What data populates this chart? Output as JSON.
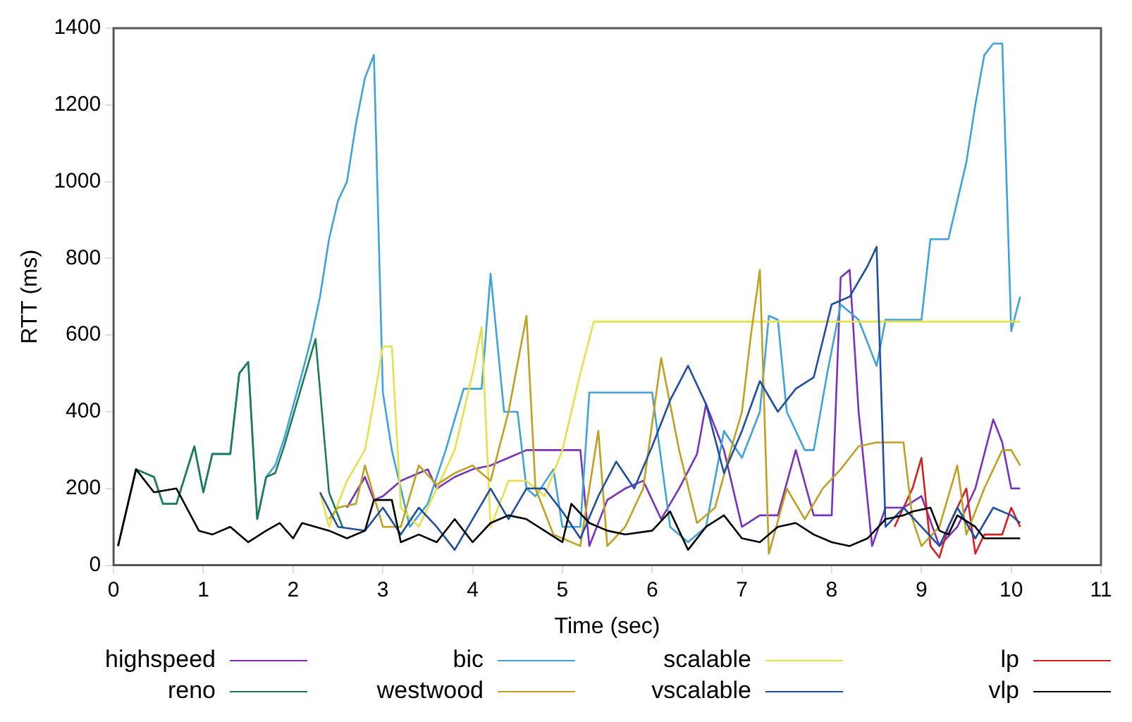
{
  "chart_data": {
    "type": "line",
    "xlabel": "Time (sec)",
    "ylabel": "RTT (ms)",
    "xlim": [
      0,
      11
    ],
    "xticks": [
      0,
      1,
      2,
      3,
      4,
      5,
      6,
      7,
      8,
      9,
      10,
      11
    ],
    "ylim": [
      0,
      1400
    ],
    "yticks": [
      0,
      200,
      400,
      600,
      800,
      1000,
      1200,
      1400
    ],
    "grid": false,
    "legend": "bottom",
    "marker": "none",
    "line_style": "solid",
    "series": [
      {
        "name": "highspeed",
        "color": "#7b2fbf",
        "x": [
          2.6,
          2.8,
          2.9,
          3.0,
          3.2,
          3.4,
          3.5,
          3.6,
          3.8,
          4.0,
          4.2,
          4.4,
          4.6,
          5.2,
          5.3,
          5.5,
          5.7,
          5.9,
          6.1,
          6.3,
          6.5,
          6.6,
          6.8,
          7.0,
          7.2,
          7.4,
          7.6,
          7.8,
          8.0,
          8.1,
          8.2,
          8.3,
          8.45,
          8.6,
          8.8,
          9.0,
          9.2,
          9.4,
          9.6,
          9.8,
          9.9,
          10.0,
          10.1
        ],
        "values": [
          150,
          230,
          170,
          180,
          220,
          240,
          250,
          200,
          230,
          250,
          260,
          280,
          300,
          300,
          50,
          170,
          200,
          220,
          120,
          200,
          290,
          420,
          300,
          100,
          130,
          130,
          300,
          130,
          130,
          750,
          770,
          400,
          50,
          150,
          150,
          180,
          50,
          100,
          200,
          380,
          320,
          200,
          200
        ]
      },
      {
        "name": "bic",
        "color": "#3fa2d8",
        "x": [
          0.05,
          0.25,
          0.45,
          0.55,
          0.7,
          0.9,
          1.0,
          1.1,
          1.3,
          1.4,
          1.5,
          1.6,
          1.7,
          1.8,
          1.9,
          2.1,
          2.2,
          2.3,
          2.4,
          2.5,
          2.6,
          2.7,
          2.8,
          2.9,
          3.0,
          3.1,
          3.3,
          3.5,
          3.7,
          3.9,
          4.1,
          4.2,
          4.35,
          4.5,
          4.6,
          4.7,
          4.9,
          5.0,
          5.2,
          5.3,
          5.6,
          6.0,
          6.2,
          6.4,
          6.6,
          6.8,
          7.0,
          7.2,
          7.3,
          7.4,
          7.5,
          7.7,
          7.8,
          7.95,
          8.1,
          8.3,
          8.5,
          8.6,
          9.0,
          9.1,
          9.3,
          9.5,
          9.6,
          9.7,
          9.8,
          9.9,
          10.0,
          10.1
        ],
        "values": [
          50,
          250,
          230,
          160,
          160,
          310,
          190,
          290,
          290,
          500,
          530,
          120,
          230,
          260,
          330,
          500,
          590,
          700,
          850,
          950,
          1000,
          1150,
          1270,
          1330,
          450,
          300,
          100,
          160,
          300,
          460,
          460,
          760,
          400,
          400,
          200,
          180,
          250,
          100,
          100,
          450,
          450,
          450,
          100,
          60,
          100,
          350,
          280,
          400,
          650,
          640,
          400,
          300,
          300,
          500,
          680,
          640,
          520,
          640,
          640,
          850,
          850,
          1050,
          1200,
          1330,
          1360,
          1360,
          610,
          700
        ]
      },
      {
        "name": "scalable",
        "color": "#e6e04a",
        "x": [
          2.3,
          2.4,
          2.6,
          2.8,
          2.9,
          3.0,
          3.1,
          3.2,
          3.4,
          3.6,
          3.8,
          4.0,
          4.1,
          4.2,
          4.4,
          4.6,
          4.8,
          5.0,
          5.2,
          5.35,
          10.1
        ],
        "values": [
          190,
          100,
          220,
          300,
          430,
          570,
          570,
          150,
          100,
          200,
          300,
          500,
          620,
          100,
          220,
          220,
          180,
          300,
          500,
          635,
          635
        ]
      },
      {
        "name": "lp",
        "color": "#d62020",
        "x": [
          8.7,
          8.9,
          9.0,
          9.1,
          9.2,
          9.3,
          9.5,
          9.6,
          9.7,
          9.9,
          10.0,
          10.1
        ],
        "values": [
          100,
          200,
          280,
          50,
          20,
          100,
          200,
          30,
          80,
          80,
          150,
          100
        ]
      },
      {
        "name": "reno",
        "color": "#1f7a5a",
        "x": [
          0.05,
          0.25,
          0.45,
          0.55,
          0.7,
          0.9,
          1.0,
          1.1,
          1.3,
          1.4,
          1.5,
          1.6,
          1.7,
          1.8,
          1.9,
          2.1,
          2.25,
          2.4,
          2.55
        ],
        "values": [
          50,
          250,
          230,
          160,
          160,
          310,
          190,
          290,
          290,
          500,
          530,
          120,
          230,
          240,
          310,
          470,
          590,
          190,
          100
        ]
      },
      {
        "name": "westwood",
        "color": "#c0a020",
        "x": [
          2.4,
          2.5,
          2.7,
          2.8,
          3.0,
          3.2,
          3.4,
          3.6,
          3.8,
          4.0,
          4.2,
          4.4,
          4.6,
          4.7,
          4.9,
          5.2,
          5.4,
          5.5,
          5.7,
          5.9,
          6.1,
          6.3,
          6.5,
          6.7,
          6.9,
          7.0,
          7.1,
          7.2,
          7.3,
          7.5,
          7.7,
          7.9,
          8.1,
          8.3,
          8.5,
          8.8,
          8.9,
          9.0,
          9.2,
          9.4,
          9.5,
          9.7,
          9.9,
          10.0,
          10.1
        ],
        "values": [
          120,
          150,
          160,
          260,
          100,
          100,
          260,
          210,
          240,
          260,
          220,
          400,
          650,
          200,
          80,
          50,
          350,
          50,
          100,
          200,
          540,
          300,
          110,
          150,
          320,
          400,
          600,
          770,
          30,
          200,
          120,
          200,
          250,
          310,
          320,
          320,
          120,
          50,
          100,
          260,
          80,
          200,
          300,
          300,
          260
        ]
      },
      {
        "name": "vscalable",
        "color": "#1f4fa0",
        "x": [
          2.3,
          2.5,
          2.8,
          3.0,
          3.2,
          3.4,
          3.6,
          3.8,
          4.0,
          4.2,
          4.4,
          4.6,
          4.8,
          5.0,
          5.2,
          5.4,
          5.6,
          5.8,
          6.0,
          6.2,
          6.4,
          6.6,
          6.8,
          7.0,
          7.2,
          7.4,
          7.6,
          7.8,
          8.0,
          8.2,
          8.4,
          8.5,
          8.6,
          8.8,
          9.0,
          9.2,
          9.4,
          9.6,
          9.8,
          10.0,
          10.1
        ],
        "values": [
          190,
          100,
          90,
          150,
          80,
          150,
          100,
          40,
          120,
          200,
          120,
          200,
          200,
          140,
          70,
          180,
          270,
          200,
          310,
          430,
          520,
          420,
          240,
          350,
          480,
          400,
          460,
          490,
          680,
          700,
          780,
          830,
          100,
          150,
          100,
          50,
          150,
          70,
          150,
          130,
          110
        ]
      },
      {
        "name": "vlp",
        "color": "#000000",
        "x": [
          0.05,
          0.25,
          0.45,
          0.7,
          0.95,
          1.1,
          1.3,
          1.5,
          1.7,
          1.85,
          2.0,
          2.1,
          2.4,
          2.6,
          2.8,
          2.9,
          3.1,
          3.2,
          3.4,
          3.6,
          3.8,
          4.0,
          4.2,
          4.4,
          4.6,
          4.8,
          5.0,
          5.1,
          5.3,
          5.5,
          5.7,
          6.0,
          6.2,
          6.4,
          6.6,
          6.8,
          7.0,
          7.2,
          7.4,
          7.6,
          7.8,
          8.0,
          8.2,
          8.4,
          8.6,
          8.8,
          8.9,
          9.1,
          9.2,
          9.3,
          9.4,
          9.6,
          9.7,
          10.1
        ],
        "values": [
          50,
          250,
          190,
          200,
          90,
          80,
          100,
          60,
          90,
          110,
          70,
          110,
          90,
          70,
          90,
          170,
          170,
          60,
          80,
          60,
          120,
          60,
          110,
          130,
          120,
          90,
          60,
          160,
          110,
          90,
          80,
          90,
          140,
          40,
          100,
          130,
          70,
          60,
          100,
          110,
          80,
          60,
          50,
          70,
          120,
          130,
          140,
          150,
          90,
          80,
          130,
          100,
          70,
          70
        ]
      }
    ]
  }
}
